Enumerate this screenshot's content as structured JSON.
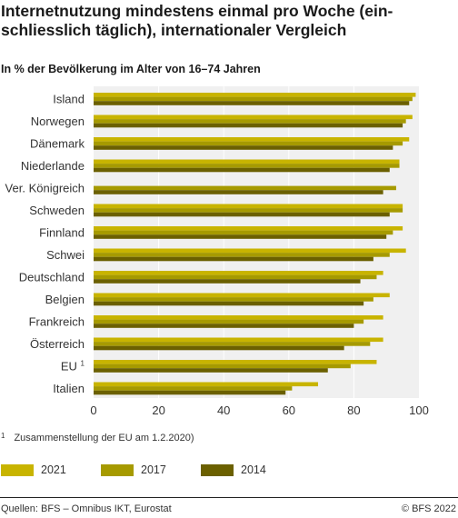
{
  "title": "Internetnutzung mindestens einmal pro Woche (ein-schliesslich täglich), internationaler Vergleich",
  "subtitle": "In % der Bevölkerung im Alter von 16–74 Jahren",
  "footnote": {
    "marker": "1",
    "text": "Zusammenstellung der EU am 1.2.2020)"
  },
  "source": "Quellen: BFS – Omnibus IKT, Eurostat",
  "copyright": "© BFS 2022",
  "colors": {
    "2021": "#c8b400",
    "2017": "#a69a00",
    "2014": "#6b6000",
    "plot_background": "#f0f0f0",
    "grid": "#ffffff"
  },
  "chart_data": {
    "type": "bar",
    "orientation": "horizontal",
    "categories": [
      "Island",
      "Norwegen",
      "Dänemark",
      "Niederlande",
      "Ver. Königreich",
      "Schweden",
      "Finnland",
      "Schwei",
      "Deutschland",
      "Belgien",
      "Frankreich",
      "Österreich",
      "EU",
      "Italien"
    ],
    "category_superscripts": {
      "EU": "1"
    },
    "series": [
      {
        "name": "2021",
        "color": "#c8b400",
        "values": [
          99,
          98,
          97,
          94,
          null,
          95,
          95,
          96,
          89,
          91,
          89,
          89,
          87,
          69
        ]
      },
      {
        "name": "2017",
        "color": "#a69a00",
        "values": [
          98,
          96,
          95,
          94,
          93,
          95,
          92,
          91,
          87,
          86,
          83,
          85,
          79,
          61
        ]
      },
      {
        "name": "2014",
        "color": "#6b6000",
        "values": [
          97,
          95,
          92,
          91,
          89,
          91,
          90,
          86,
          82,
          83,
          80,
          77,
          72,
          59
        ]
      }
    ],
    "xlim": [
      0,
      100
    ],
    "xticks": [
      0,
      20,
      40,
      60,
      80,
      100
    ],
    "grid": true,
    "legend_position": "bottom-left"
  }
}
